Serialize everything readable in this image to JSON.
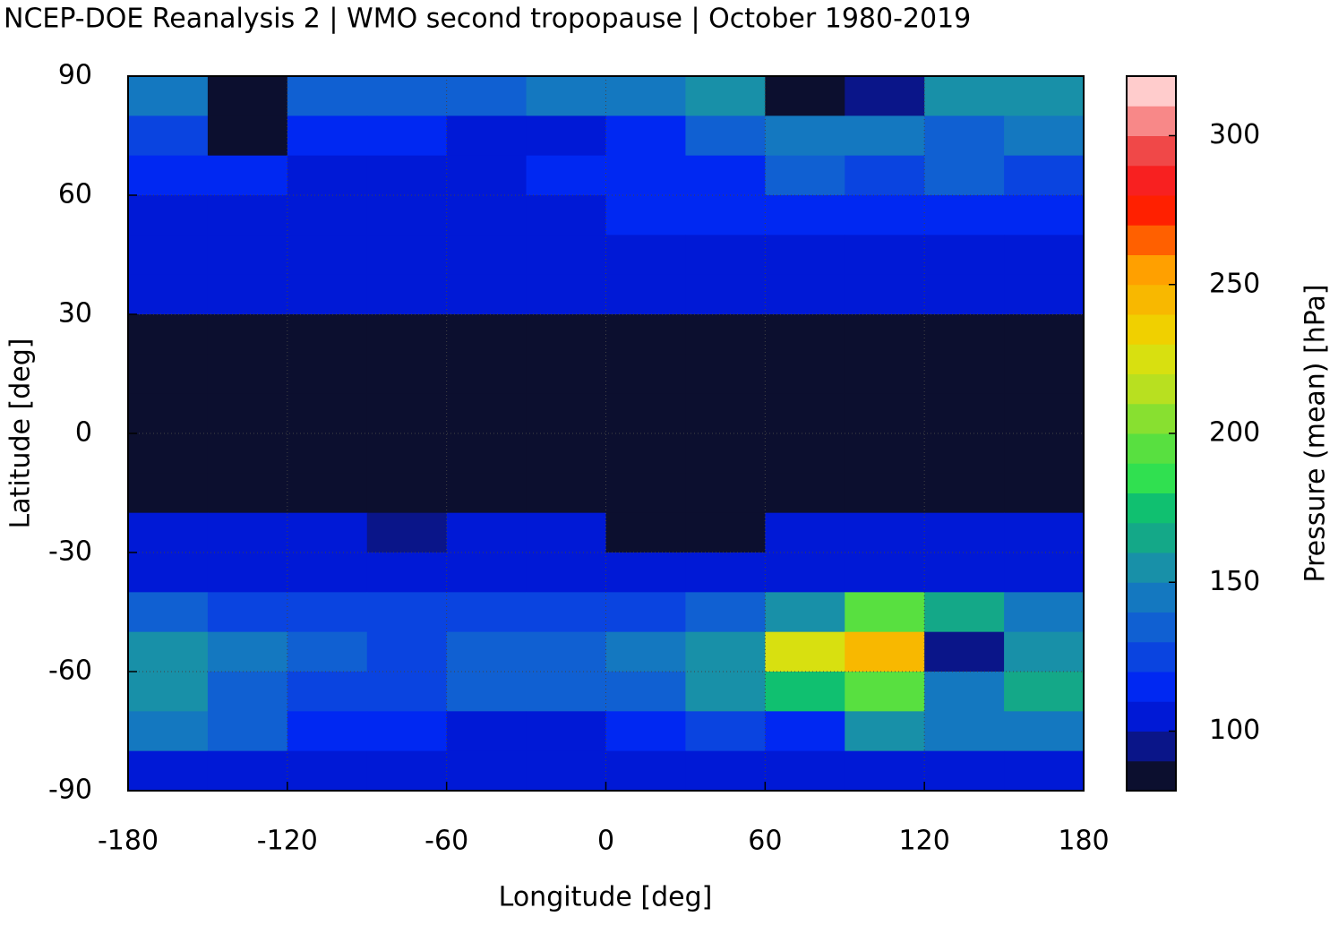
{
  "chart_data": {
    "type": "heatmap",
    "title": "NCEP-DOE Reanalysis 2 | WMO second tropopause | October 1980-2019",
    "x_label": "Longitude [deg]",
    "y_label": "Latitude [deg]",
    "colorbar_label": "Pressure (mean) [hPa]",
    "x": [
      -165,
      -135,
      -105,
      -75,
      -45,
      -15,
      15,
      45,
      75,
      105,
      135,
      165
    ],
    "y": [
      85,
      75,
      65,
      55,
      45,
      35,
      25,
      15,
      5,
      -5,
      -15,
      -25,
      -35,
      -45,
      -55,
      -65,
      -75,
      -85
    ],
    "z": [
      [
        140,
        85,
        130,
        130,
        135,
        140,
        140,
        150,
        85,
        90,
        150,
        150
      ],
      [
        120,
        85,
        110,
        115,
        100,
        105,
        115,
        130,
        145,
        140,
        130,
        140
      ],
      [
        115,
        110,
        105,
        105,
        105,
        110,
        110,
        115,
        130,
        125,
        130,
        125
      ],
      [
        105,
        105,
        105,
        105,
        105,
        108,
        110,
        115,
        115,
        115,
        115,
        110
      ],
      [
        105,
        105,
        105,
        105,
        105,
        105,
        105,
        108,
        108,
        105,
        105,
        105
      ],
      [
        100,
        100,
        100,
        100,
        100,
        105,
        100,
        100,
        100,
        100,
        100,
        100
      ],
      [
        85,
        85,
        85,
        85,
        85,
        85,
        85,
        85,
        85,
        85,
        85,
        85
      ],
      [
        85,
        85,
        85,
        85,
        85,
        85,
        85,
        85,
        85,
        85,
        85,
        85
      ],
      [
        85,
        85,
        85,
        85,
        85,
        85,
        85,
        85,
        85,
        85,
        85,
        85
      ],
      [
        85,
        85,
        85,
        85,
        85,
        85,
        85,
        85,
        85,
        85,
        85,
        85
      ],
      [
        85,
        85,
        85,
        85,
        85,
        85,
        85,
        85,
        85,
        85,
        85,
        85
      ],
      [
        105,
        105,
        105,
        95,
        105,
        105,
        85,
        85,
        105,
        105,
        105,
        105
      ],
      [
        105,
        105,
        105,
        100,
        105,
        105,
        100,
        105,
        105,
        105,
        105,
        105
      ],
      [
        130,
        120,
        125,
        120,
        120,
        125,
        125,
        130,
        150,
        190,
        160,
        140
      ],
      [
        150,
        140,
        135,
        125,
        130,
        135,
        140,
        150,
        220,
        240,
        90,
        150
      ],
      [
        150,
        135,
        125,
        120,
        130,
        135,
        130,
        155,
        170,
        190,
        140,
        160
      ],
      [
        140,
        130,
        115,
        110,
        105,
        105,
        110,
        125,
        110,
        150,
        145,
        140
      ],
      [
        105,
        105,
        105,
        105,
        105,
        105,
        105,
        105,
        105,
        105,
        105,
        105
      ]
    ],
    "xlim": [
      -180,
      180
    ],
    "ylim": [
      -90,
      90
    ],
    "xticks": [
      -180,
      -120,
      -60,
      0,
      60,
      120,
      180
    ],
    "yticks": [
      -90,
      -60,
      -30,
      0,
      30,
      60,
      90
    ],
    "clim": [
      80,
      320
    ],
    "cticks": [
      100,
      150,
      200,
      250,
      300
    ],
    "colors": [
      "#0c0f2f",
      "#0a1589",
      "#0019d6",
      "#0028f2",
      "#0a44e0",
      "#1060d2",
      "#1478c0",
      "#1890a8",
      "#14a888",
      "#10c070",
      "#30e050",
      "#58e040",
      "#88e030",
      "#b8e020",
      "#d8e010",
      "#f0d000",
      "#f8b800",
      "#ffa000",
      "#ff6000",
      "#ff2000",
      "#f82020",
      "#f04848",
      "#f88888",
      "#ffcccc"
    ],
    "grid": true
  }
}
